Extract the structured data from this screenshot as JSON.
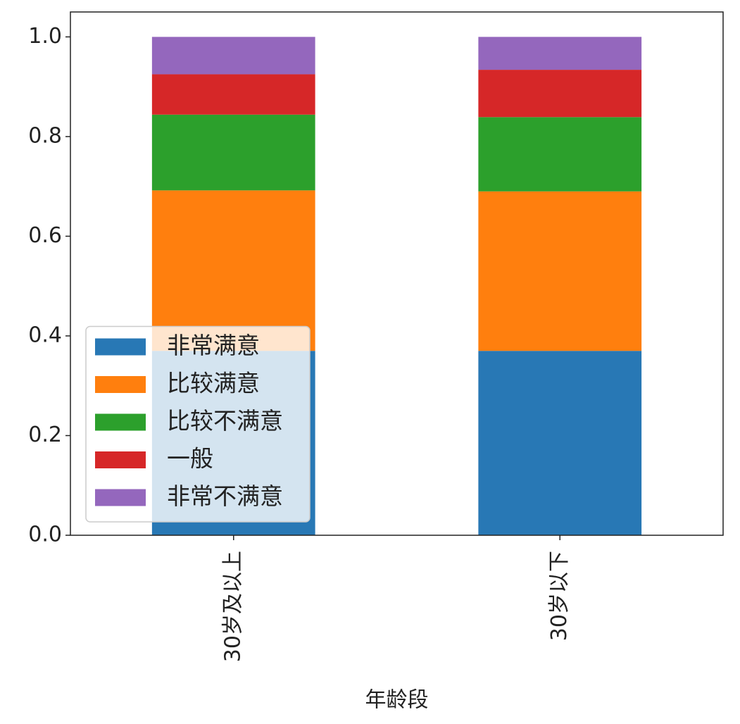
{
  "chart_data": {
    "type": "stacked_bar",
    "x_label": "年龄段",
    "categories": [
      "30岁及以上",
      "30岁以下"
    ],
    "series": [
      {
        "name": "非常满意",
        "color": "#2878b5",
        "values": [
          0.37,
          0.37
        ]
      },
      {
        "name": "比较满意",
        "color": "#ff7f0e",
        "values": [
          0.322,
          0.32
        ]
      },
      {
        "name": "比较不满意",
        "color": "#2ca02c",
        "values": [
          0.152,
          0.149
        ]
      },
      {
        "name": "一般",
        "color": "#d62728",
        "values": [
          0.081,
          0.095
        ]
      },
      {
        "name": "非常不满意",
        "color": "#9467bd",
        "values": [
          0.075,
          0.066
        ]
      }
    ],
    "ylim": [
      0,
      1.05
    ],
    "yticks": [
      {
        "value": 0,
        "label": "0.0"
      },
      0.2,
      0.4,
      0.6,
      0.8,
      {
        "value": 1,
        "label": "1.0"
      }
    ],
    "legend": "lower left"
  }
}
